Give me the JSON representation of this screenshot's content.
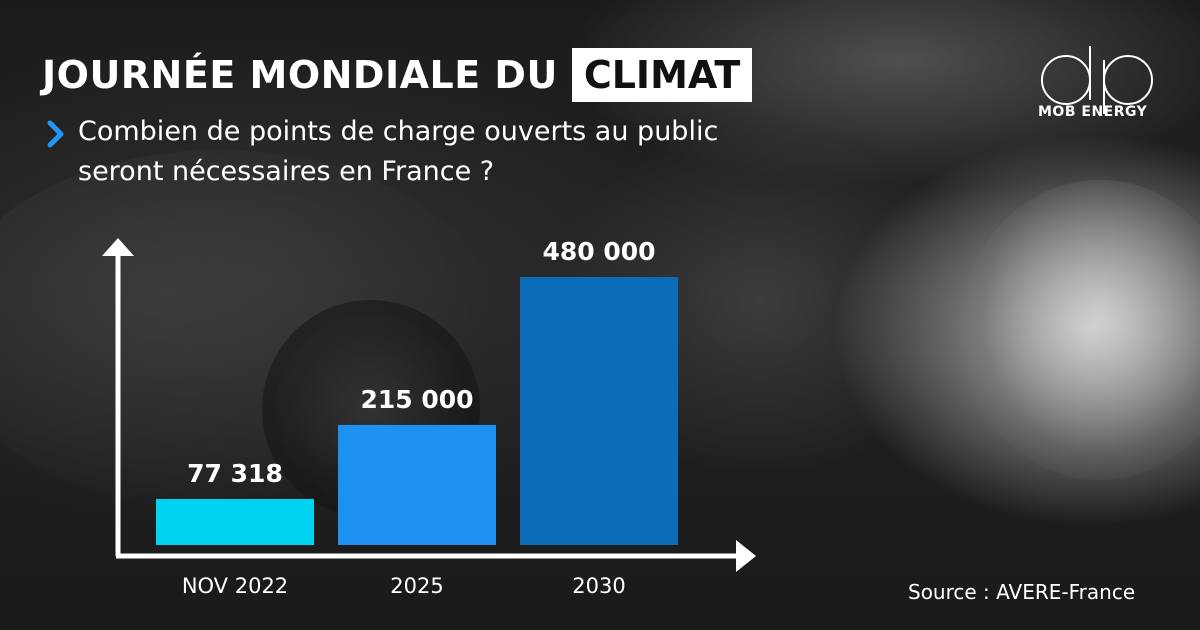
{
  "header": {
    "title_main": "JOURNÉE MONDIALE DU",
    "title_highlight": "CLIMAT",
    "subtitle": "Combien de points de charge ouverts au public seront nécessaires en France ?"
  },
  "brand": {
    "logo_text": "MOB ENERGY"
  },
  "footer": {
    "source": "Source : AVERE-France"
  },
  "colors": {
    "accent": "#2196F3",
    "bar_colors": [
      "#00D4F0",
      "#1E90F0",
      "#0B6DB8"
    ]
  },
  "chart_data": {
    "type": "bar",
    "categories": [
      "NOV 2022",
      "2025",
      "2030"
    ],
    "values": [
      77318,
      215000,
      480000
    ],
    "value_labels": [
      "77 318",
      "215 000",
      "480 000"
    ],
    "ylim": [
      0,
      480000
    ]
  }
}
